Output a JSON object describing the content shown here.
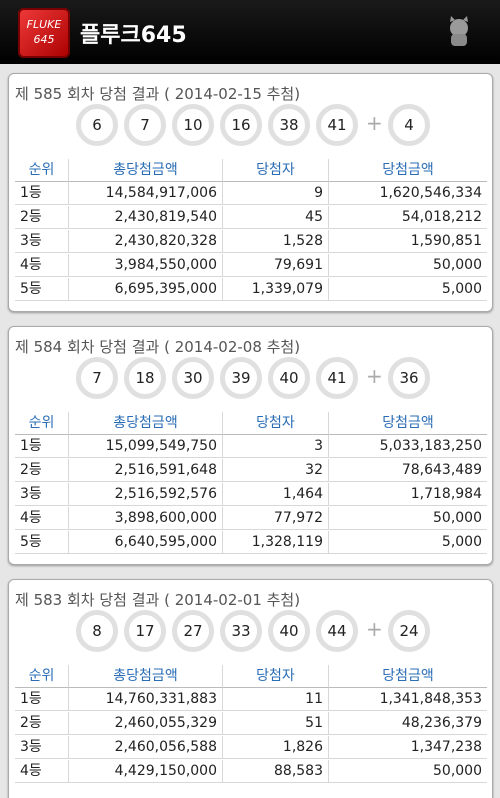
{
  "header": {
    "logo_lines": [
      "FLUKE",
      "645"
    ],
    "title": "플루크645"
  },
  "table_header": [
    "순위",
    "총당첨금액",
    "당첨자",
    "당첨금액"
  ],
  "bonus_separator": "+",
  "draws": [
    {
      "title": "제 585 회차 당첨 결과 ( 2014-02-15 추첨)",
      "numbers": [
        6,
        7,
        10,
        16,
        38,
        41
      ],
      "bonus": 4,
      "rows": [
        [
          "1등",
          "14,584,917,006",
          "9",
          "1,620,546,334"
        ],
        [
          "2등",
          "2,430,819,540",
          "45",
          "54,018,212"
        ],
        [
          "3등",
          "2,430,820,328",
          "1,528",
          "1,590,851"
        ],
        [
          "4등",
          "3,984,550,000",
          "79,691",
          "50,000"
        ],
        [
          "5등",
          "6,695,395,000",
          "1,339,079",
          "5,000"
        ]
      ]
    },
    {
      "title": "제 584 회차 당첨 결과 ( 2014-02-08 추첨)",
      "numbers": [
        7,
        18,
        30,
        39,
        40,
        41
      ],
      "bonus": 36,
      "rows": [
        [
          "1등",
          "15,099,549,750",
          "3",
          "5,033,183,250"
        ],
        [
          "2등",
          "2,516,591,648",
          "32",
          "78,643,489"
        ],
        [
          "3등",
          "2,516,592,576",
          "1,464",
          "1,718,984"
        ],
        [
          "4등",
          "3,898,600,000",
          "77,972",
          "50,000"
        ],
        [
          "5등",
          "6,640,595,000",
          "1,328,119",
          "5,000"
        ]
      ]
    },
    {
      "title": "제 583 회차 당첨 결과 ( 2014-02-01 추첨)",
      "numbers": [
        8,
        17,
        27,
        33,
        40,
        44
      ],
      "bonus": 24,
      "rows": [
        [
          "1등",
          "14,760,331,883",
          "11",
          "1,341,848,353"
        ],
        [
          "2등",
          "2,460,055,329",
          "51",
          "48,236,379"
        ],
        [
          "3등",
          "2,460,056,588",
          "1,826",
          "1,347,238"
        ],
        [
          "4등",
          "4,429,150,000",
          "88,583",
          "50,000"
        ]
      ]
    }
  ]
}
